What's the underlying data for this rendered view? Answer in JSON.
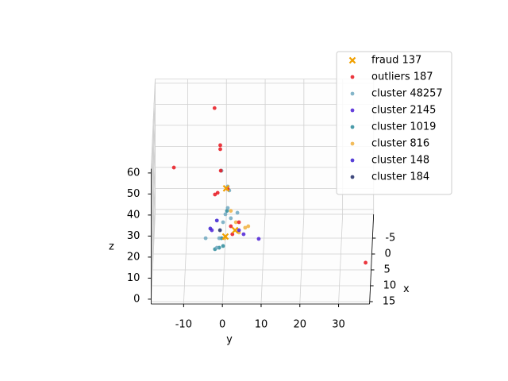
{
  "chart_data": {
    "type": "scatter3d",
    "xlabel": "x",
    "ylabel": "y",
    "zlabel": "z",
    "xlim": [
      -12.5,
      15.75
    ],
    "ylim": [
      -18.4,
      38
    ],
    "zlim": [
      -2.3,
      62
    ],
    "xticks": [
      -5,
      0,
      5,
      10,
      15
    ],
    "yticks": [
      -10,
      0,
      10,
      20,
      30
    ],
    "zticks": [
      0,
      10,
      20,
      30,
      40,
      50,
      60
    ],
    "grid": true,
    "legend": "upper right",
    "series": [
      {
        "name": "fraud 137",
        "color": "#f0a000",
        "marker": "x",
        "x": [
          0,
          0,
          0
        ],
        "y": [
          0.4,
          2.7,
          0.2
        ],
        "z": [
          28.9,
          9,
          6
        ]
      },
      {
        "name": "outliers 187",
        "color": "#e8141c",
        "marker": "o",
        "x": [
          -8,
          -2,
          -2,
          0,
          0,
          0,
          0,
          0,
          0,
          0,
          0,
          3
        ],
        "y": [
          -2.9,
          -1.2,
          -1.2,
          -13.1,
          -1,
          0.8,
          -2.5,
          -1.8,
          1.6,
          3.7,
          2,
          36.5
        ],
        "z": [
          55,
          46.4,
          44.5,
          38.8,
          37.3,
          28.6,
          26,
          26.8,
          10.9,
          12.8,
          7.1,
          -1.9
        ]
      },
      {
        "name": "cluster 48257",
        "color": "#6fa8bf",
        "marker": "o",
        "x": [
          0,
          0,
          0,
          0,
          0,
          0,
          0,
          0,
          0,
          0,
          0
        ],
        "y": [
          1.2,
          0.8,
          0.2,
          -0.4,
          1.6,
          3.3,
          -1.4,
          -2,
          -4.9,
          -0.8,
          0.8
        ],
        "z": [
          27.9,
          19.6,
          16.6,
          12.8,
          14.7,
          17.3,
          5.2,
          0.7,
          5.2,
          37.3,
          29.8
        ]
      },
      {
        "name": "cluster 2145",
        "color": "#4b1fd6",
        "marker": "o",
        "x": [
          0,
          0,
          0,
          0
        ],
        "y": [
          -3.3,
          8.8,
          4.9,
          3.7
        ],
        "z": [
          9,
          4.9,
          7.1,
          9
        ]
      },
      {
        "name": "cluster 1019",
        "color": "#2a8a9a",
        "marker": "o",
        "x": [
          0,
          0,
          0,
          0,
          0
        ],
        "y": [
          -1.4,
          -0.4,
          -2.5,
          0.6,
          -0.8
        ],
        "z": [
          0.7,
          1.5,
          0,
          18.2,
          5.2
        ]
      },
      {
        "name": "cluster 816",
        "color": "#f0b040",
        "marker": "o",
        "x": [
          0,
          0,
          0,
          0,
          0,
          0
        ],
        "y": [
          5.3,
          3.7,
          2.9,
          6.1,
          0,
          1.6
        ],
        "z": [
          10.2,
          7.9,
          12.8,
          10.9,
          5.2,
          18.2
        ]
      },
      {
        "name": "cluster 148",
        "color": "#3a1ed0",
        "marker": "o",
        "x": [
          0,
          0
        ],
        "y": [
          -3.7,
          -2
        ],
        "z": [
          9.8,
          13.6
        ]
      },
      {
        "name": "cluster 184",
        "color": "#1f2a66",
        "marker": "o",
        "x": [
          0
        ],
        "y": [
          -1.2
        ],
        "z": [
          9
        ]
      }
    ]
  }
}
